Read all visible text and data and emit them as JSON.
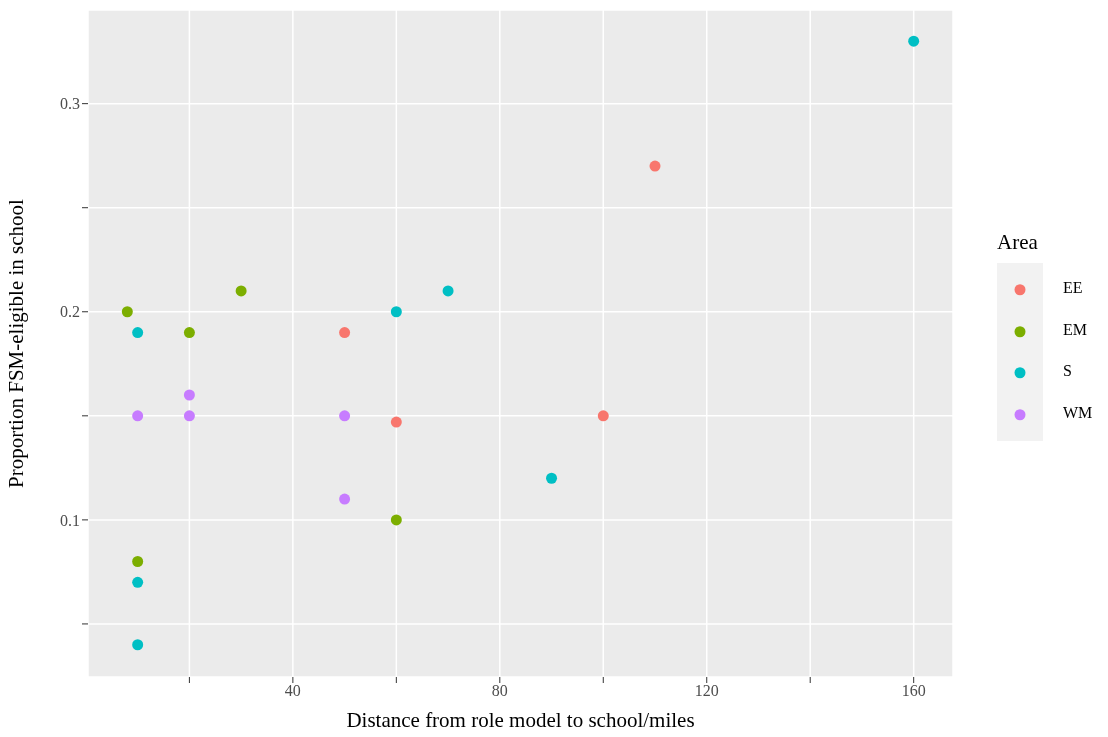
{
  "chart_data": {
    "type": "scatter",
    "xlabel": "Distance from role model to school/miles",
    "ylabel": "Proportion FSM-eligible in school",
    "legend_title": "Area",
    "legend": "right",
    "grid": true,
    "marker": "circle",
    "xlim": [
      0.4,
      167.6
    ],
    "ylim": [
      0.0245,
      0.345
    ],
    "xticks": [
      {
        "value": 20,
        "label": null
      },
      40,
      {
        "value": 60,
        "label": null
      },
      80,
      {
        "value": 100,
        "label": null
      },
      120,
      {
        "value": 140,
        "label": null
      },
      160
    ],
    "yticks": [
      {
        "value": 0.05,
        "label": null
      },
      0.1,
      {
        "value": 0.15,
        "label": null
      },
      0.2,
      {
        "value": 0.25,
        "label": null
      },
      0.3
    ],
    "series": [
      {
        "name": "EE",
        "color": "#f8766d",
        "x": [
          50,
          60,
          110,
          100
        ],
        "values": [
          0.19,
          0.147,
          0.27,
          0.15
        ]
      },
      {
        "name": "EM",
        "color": "#7cae00",
        "x": [
          8,
          20,
          30,
          10,
          60
        ],
        "values": [
          0.2,
          0.19,
          0.21,
          0.08,
          0.1
        ]
      },
      {
        "name": "S",
        "color": "#00bfc4",
        "x": [
          10,
          60,
          70,
          90,
          160,
          10,
          10
        ],
        "values": [
          0.19,
          0.2,
          0.21,
          0.12,
          0.33,
          0.07,
          0.04
        ]
      },
      {
        "name": "WM",
        "color": "#c77cff",
        "x": [
          10,
          20,
          20,
          50,
          50
        ],
        "values": [
          0.15,
          0.16,
          0.15,
          0.15,
          0.11
        ]
      }
    ]
  }
}
